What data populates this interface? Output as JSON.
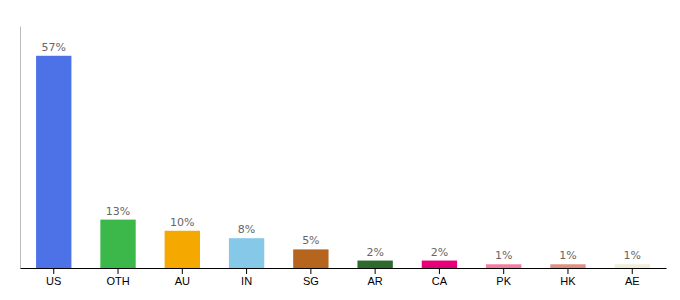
{
  "chart_data": {
    "type": "bar",
    "categories": [
      "US",
      "OTH",
      "AU",
      "IN",
      "SG",
      "AR",
      "CA",
      "PK",
      "HK",
      "AE"
    ],
    "values": [
      57,
      13,
      10,
      8,
      5,
      2,
      2,
      1,
      1,
      1
    ],
    "value_labels": [
      "57%",
      "13%",
      "10%",
      "8%",
      "5%",
      "2%",
      "2%",
      "1%",
      "1%",
      "1%"
    ],
    "colors": [
      "#4d72e8",
      "#3cb84a",
      "#f5a800",
      "#85c8e8",
      "#b5651d",
      "#2d6a2d",
      "#e8007a",
      "#f080a0",
      "#e09080",
      "#f0eed8"
    ],
    "ylim": [
      0,
      65
    ],
    "grid": false,
    "data_labels": true,
    "tick_labels": "x"
  }
}
